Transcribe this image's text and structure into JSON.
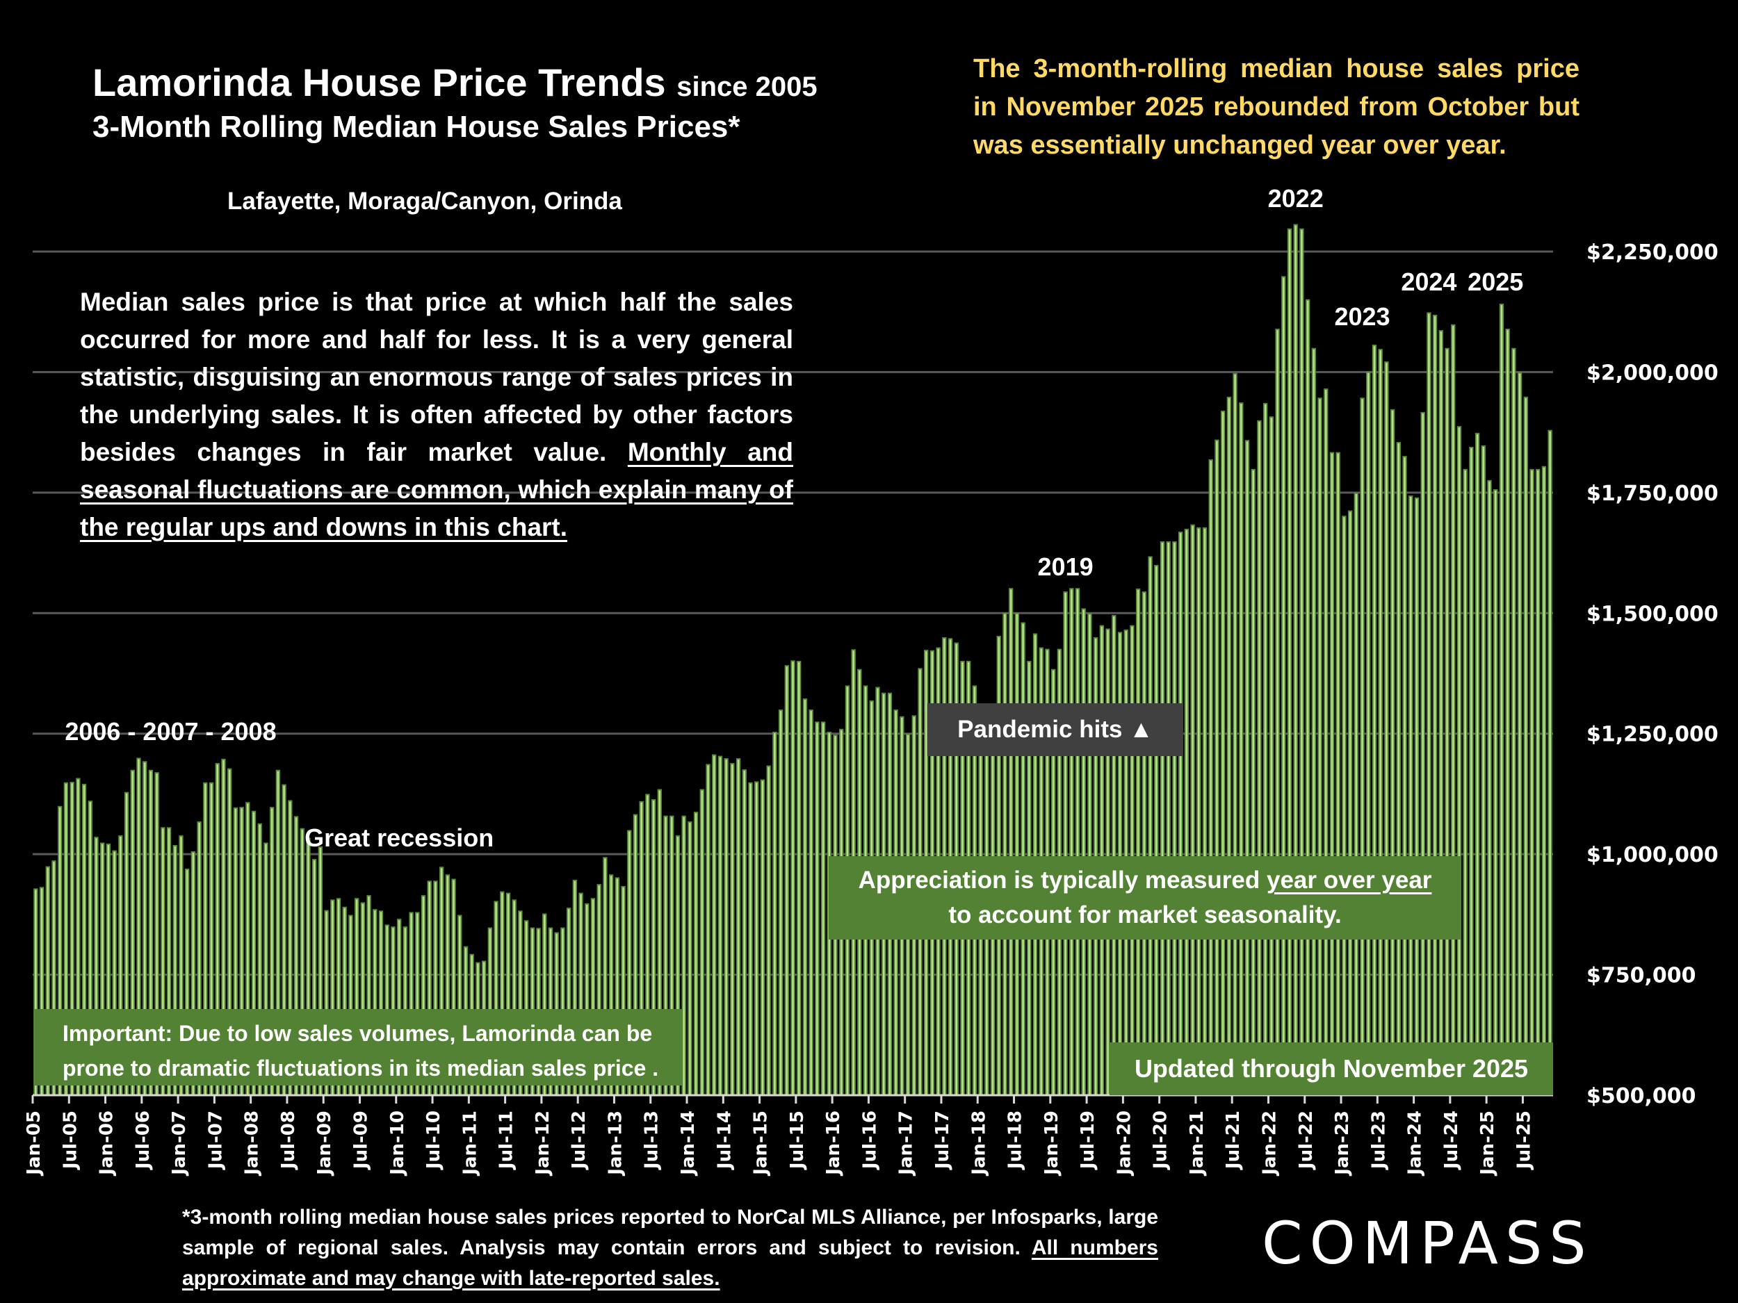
{
  "header": {
    "title_main": "Lamorinda House Price Trends",
    "title_suffix": "since 2005",
    "title_line2": "3-Month Rolling Median House Sales Prices*",
    "subtitle": "Lafayette, Moraga/Canyon, Orinda",
    "headline": "The 3-month-rolling median house sales price in November 2025 rebounded from October but was essentially unchanged year over year."
  },
  "explainer": {
    "plain": "Median sales price is that price at which half the sales occurred for more and half for less. It is a very general statistic, disguising an enormous range of sales prices in the underlying sales. It is often affected by other factors besides changes in fair market value. ",
    "underlined": "Monthly and seasonal fluctuations are common, which explain many of the regular ups and downs in this chart."
  },
  "boxes": {
    "appreciation_plain": "Appreciation is typically measured ",
    "appreciation_underlined": "year over year",
    "appreciation_line2": "to account for market seasonality.",
    "important": "Important: Due to low sales volumes, Lamorinda can be prone to dramatic fluctuations in its median sales price .",
    "updated": "Updated through November 2025",
    "pandemic": "Pandemic hits ▲"
  },
  "footnote": {
    "plain": "*3-month rolling median house sales prices reported to NorCal MLS Alliance, per Infosparks, large sample of regional sales. Analysis may contain errors and subject to revision. ",
    "underlined": "All numbers approximate and may change with late-reported sales."
  },
  "logo": "COMPASS",
  "colors": {
    "background": "#000000",
    "bar_outer": "#5B8C3A",
    "bar_inner": "#B6E08C",
    "box_green": "#548235",
    "box_gray": "#404040",
    "headline_yellow": "#FFD966",
    "gridline": "#595959"
  },
  "chart_data": {
    "type": "bar",
    "title": "Lamorinda House Price Trends since 2005 — 3-Month Rolling Median House Sales Prices",
    "xlabel": "",
    "ylabel": "",
    "ylim": [
      500000,
      2350000
    ],
    "y_ticks": [
      500000,
      750000,
      1000000,
      1250000,
      1500000,
      1750000,
      2000000,
      2250000
    ],
    "y_tick_labels": [
      "$500,000",
      "$750,000",
      "$1,000,000",
      "$1,250,000",
      "$1,500,000",
      "$1,750,000",
      "$2,000,000",
      "$2,250,000"
    ],
    "grid": true,
    "y_axis_side": "right",
    "start": "Jan-05",
    "end": "Nov-25",
    "x_tick_labels": [
      "Jan-05",
      "Jul-05",
      "Jan-06",
      "Jul-06",
      "Jan-07",
      "Jul-07",
      "Jan-08",
      "Jul-08",
      "Jan-09",
      "Jul-09",
      "Jan-10",
      "Jul-10",
      "Jan-11",
      "Jul-11",
      "Jan-12",
      "Jul-12",
      "Jan-13",
      "Jul-13",
      "Jan-14",
      "Jul-14",
      "Jan-15",
      "Jul-15",
      "Jan-16",
      "Jul-16",
      "Jan-17",
      "Jul-17",
      "Jan-18",
      "Jul-18",
      "Jan-19",
      "Jul-19",
      "Jan-20",
      "Jul-20",
      "Jan-21",
      "Jul-21",
      "Jan-22",
      "Jul-22",
      "Jan-23",
      "Jul-23",
      "Jan-24",
      "Jul-24",
      "Jan-25",
      "Jul-25"
    ],
    "values": [
      929000,
      932000,
      975000,
      987000,
      1100000,
      1149000,
      1150000,
      1158000,
      1146000,
      1111000,
      1036000,
      1024000,
      1022000,
      1008000,
      1039000,
      1129000,
      1175000,
      1200000,
      1193000,
      1175000,
      1170000,
      1056000,
      1056000,
      1019000,
      1039000,
      970000,
      1006000,
      1068000,
      1149000,
      1149000,
      1189000,
      1198000,
      1178000,
      1097000,
      1098000,
      1108000,
      1090000,
      1064000,
      1024000,
      1098000,
      1175000,
      1145000,
      1112000,
      1079000,
      1054000,
      1034000,
      990000,
      1016000,
      884000,
      906000,
      909000,
      891000,
      874000,
      909000,
      900000,
      915000,
      886000,
      883000,
      854000,
      850000,
      866000,
      850000,
      880000,
      880000,
      915000,
      945000,
      945000,
      974000,
      958000,
      949000,
      874000,
      809000,
      793000,
      776000,
      779000,
      848000,
      903000,
      923000,
      920000,
      906000,
      883000,
      863000,
      848000,
      847000,
      877000,
      848000,
      838000,
      848000,
      889000,
      947000,
      920000,
      898000,
      909000,
      938000,
      994000,
      958000,
      952000,
      934000,
      1050000,
      1083000,
      1110000,
      1125000,
      1114000,
      1135000,
      1080000,
      1080000,
      1039000,
      1080000,
      1068000,
      1088000,
      1135000,
      1187000,
      1207000,
      1204000,
      1199000,
      1189000,
      1199000,
      1176000,
      1149000,
      1151000,
      1155000,
      1184000,
      1254000,
      1300000,
      1392000,
      1402000,
      1401000,
      1323000,
      1300000,
      1275000,
      1275000,
      1254000,
      1248000,
      1260000,
      1350000,
      1425000,
      1384000,
      1350000,
      1319000,
      1347000,
      1335000,
      1335000,
      1300000,
      1286000,
      1250000,
      1288000,
      1386000,
      1424000,
      1423000,
      1429000,
      1450000,
      1448000,
      1439000,
      1401000,
      1401000,
      1350000,
      1290000,
      1280000,
      1300000,
      1453000,
      1501000,
      1552000,
      1501000,
      1481000,
      1401000,
      1458000,
      1429000,
      1426000,
      1384000,
      1426000,
      1545000,
      1552000,
      1552000,
      1510000,
      1500000,
      1450000,
      1475000,
      1468000,
      1496000,
      1461000,
      1466000,
      1475000,
      1551000,
      1545000,
      1618000,
      1600000,
      1649000,
      1649000,
      1649000,
      1669000,
      1675000,
      1684000,
      1678000,
      1678000,
      1819000,
      1860000,
      1920000,
      1949000,
      1998000,
      1937000,
      1859000,
      1799000,
      1900000,
      1936000,
      1908000,
      2090000,
      2199000,
      2298000,
      2307000,
      2298000,
      2151000,
      2050000,
      1947000,
      1966000,
      1834000,
      1834000,
      1702000,
      1713000,
      1750000,
      1947000,
      2001000,
      2057000,
      2048000,
      2022000,
      1923000,
      1855000,
      1826000,
      1744000,
      1740000,
      1917000,
      2124000,
      2119000,
      2087000,
      2050000,
      2099000,
      1888000,
      1799000,
      1845000,
      1874000,
      1848000,
      1776000,
      1757000,
      2142000,
      2090000,
      2050000,
      2000000,
      1949000,
      1799000,
      1799000,
      1805000,
      1880000
    ],
    "annotations": [
      {
        "text": "2006 - 2007 - 2008",
        "near": "Jan-07"
      },
      {
        "text": "Great recession",
        "near": "Jan-10"
      },
      {
        "text": "2019",
        "near": "Mar-19"
      },
      {
        "text": "2022",
        "near": "May-22"
      },
      {
        "text": "2023",
        "near": "Apr-23"
      },
      {
        "text": "2024",
        "near": "Mar-24"
      },
      {
        "text": "2025",
        "near": "Feb-25"
      }
    ]
  }
}
